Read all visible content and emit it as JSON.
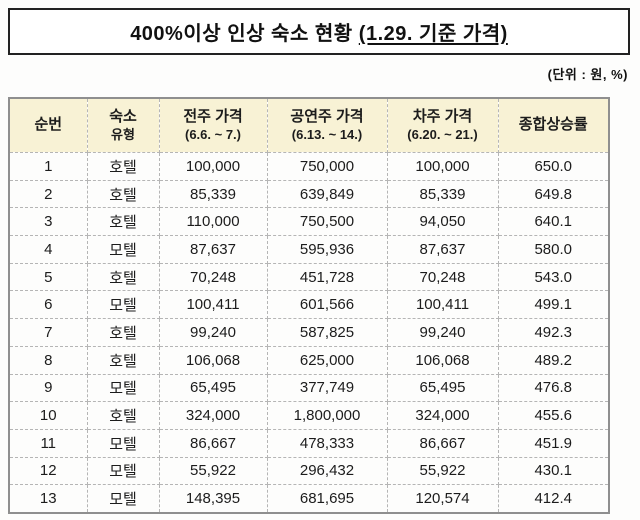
{
  "title": {
    "main": "400%이상 인상 숙소 현황 ",
    "emphasis": "(1.29. 기준 가격)"
  },
  "unit_note": "(단위 : 원, %)",
  "table": {
    "columns": [
      {
        "line1": "순번",
        "line2": ""
      },
      {
        "line1": "숙소",
        "line2": "유형"
      },
      {
        "line1": "전주 가격",
        "line2": "(6.6. ~ 7.)"
      },
      {
        "line1": "공연주 가격",
        "line2": "(6.13. ~ 14.)"
      },
      {
        "line1": "차주 가격",
        "line2": "(6.20. ~ 21.)"
      },
      {
        "line1": "종합상승률",
        "line2": ""
      }
    ],
    "rows": [
      [
        "1",
        "호텔",
        "100,000",
        "750,000",
        "100,000",
        "650.0"
      ],
      [
        "2",
        "호텔",
        "85,339",
        "639,849",
        "85,339",
        "649.8"
      ],
      [
        "3",
        "호텔",
        "110,000",
        "750,500",
        "94,050",
        "640.1"
      ],
      [
        "4",
        "모텔",
        "87,637",
        "595,936",
        "87,637",
        "580.0"
      ],
      [
        "5",
        "호텔",
        "70,248",
        "451,728",
        "70,248",
        "543.0"
      ],
      [
        "6",
        "모텔",
        "100,411",
        "601,566",
        "100,411",
        "499.1"
      ],
      [
        "7",
        "호텔",
        "99,240",
        "587,825",
        "99,240",
        "492.3"
      ],
      [
        "8",
        "호텔",
        "106,068",
        "625,000",
        "106,068",
        "489.2"
      ],
      [
        "9",
        "모텔",
        "65,495",
        "377,749",
        "65,495",
        "476.8"
      ],
      [
        "10",
        "호텔",
        "324,000",
        "1,800,000",
        "324,000",
        "455.6"
      ],
      [
        "11",
        "모텔",
        "86,667",
        "478,333",
        "86,667",
        "451.9"
      ],
      [
        "12",
        "모텔",
        "55,922",
        "296,432",
        "55,922",
        "430.1"
      ],
      [
        "13",
        "모텔",
        "148,395",
        "681,695",
        "120,574",
        "412.4"
      ]
    ]
  },
  "colors": {
    "header_bg": "#f8f2d5",
    "outer_border": "#8f8f8f",
    "inner_border": "#b5b5b5",
    "title_border": "#222222",
    "text": "#1c1c1c"
  }
}
